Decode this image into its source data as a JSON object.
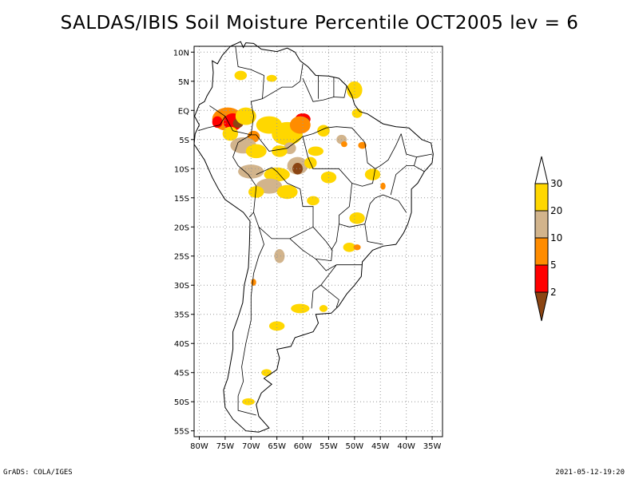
{
  "title": "SALDAS/IBIS Soil Moisture Percentile OCT2005 lev = 6",
  "footer": {
    "left": "GrADS: COLA/IGES",
    "right": "2021-05-12-19:20"
  },
  "map": {
    "lat_labels": [
      "10N",
      "5N",
      "EQ",
      "5S",
      "10S",
      "15S",
      "20S",
      "25S",
      "30S",
      "35S",
      "40S",
      "45S",
      "50S",
      "55S"
    ],
    "lat_values": [
      10,
      5,
      0,
      -5,
      -10,
      -15,
      -20,
      -25,
      -30,
      -35,
      -40,
      -45,
      -50,
      -55
    ],
    "lon_labels": [
      "80W",
      "75W",
      "70W",
      "65W",
      "60W",
      "55W",
      "50W",
      "45W",
      "40W",
      "35W"
    ],
    "lon_values": [
      -80,
      -75,
      -70,
      -65,
      -60,
      -55,
      -50,
      -45,
      -40,
      -35
    ],
    "lon_range": [
      -81,
      -33
    ],
    "lat_range": [
      -56,
      11
    ],
    "colors": {
      "coast": "#000000",
      "grid": "#999999",
      "bin_2": "#8b4513",
      "bin_2_5": "#ff0000",
      "bin_5_10": "#ff8c00",
      "bin_10_20": "#d2b48c",
      "bin_20_30": "#ffd700"
    },
    "patches": [
      {
        "lon": -74.5,
        "lat": -1.5,
        "rx": 3.0,
        "ry": 2.0,
        "bin": "bin_5_10"
      },
      {
        "lon": -73.5,
        "lat": -2.0,
        "rx": 1.8,
        "ry": 1.5,
        "bin": "bin_2_5"
      },
      {
        "lon": -72.5,
        "lat": -2.2,
        "rx": 1.0,
        "ry": 0.8,
        "bin": "bin_2"
      },
      {
        "lon": -76.5,
        "lat": -2.0,
        "rx": 1.0,
        "ry": 1.0,
        "bin": "bin_2_5"
      },
      {
        "lon": -71.0,
        "lat": -1.0,
        "rx": 2.0,
        "ry": 1.5,
        "bin": "bin_20_30"
      },
      {
        "lon": -69.5,
        "lat": -4.5,
        "rx": 1.2,
        "ry": 1.0,
        "bin": "bin_5_10"
      },
      {
        "lon": -71.5,
        "lat": -6.0,
        "rx": 2.5,
        "ry": 1.4,
        "bin": "bin_10_20"
      },
      {
        "lon": -69.0,
        "lat": -7.0,
        "rx": 2.0,
        "ry": 1.2,
        "bin": "bin_20_30"
      },
      {
        "lon": -74.0,
        "lat": -4.0,
        "rx": 1.5,
        "ry": 1.2,
        "bin": "bin_20_30"
      },
      {
        "lon": -66.5,
        "lat": -2.5,
        "rx": 2.5,
        "ry": 1.5,
        "bin": "bin_20_30"
      },
      {
        "lon": -63.0,
        "lat": -4.0,
        "rx": 3.0,
        "ry": 2.0,
        "bin": "bin_20_30"
      },
      {
        "lon": -60.0,
        "lat": -1.5,
        "rx": 1.5,
        "ry": 1.0,
        "bin": "bin_2_5"
      },
      {
        "lon": -59.5,
        "lat": -1.8,
        "rx": 0.8,
        "ry": 0.6,
        "bin": "bin_2"
      },
      {
        "lon": -60.5,
        "lat": -2.5,
        "rx": 2.0,
        "ry": 1.5,
        "bin": "bin_5_10"
      },
      {
        "lon": -62.5,
        "lat": -6.5,
        "rx": 1.2,
        "ry": 1.0,
        "bin": "bin_10_20"
      },
      {
        "lon": -64.5,
        "lat": -7.0,
        "rx": 1.5,
        "ry": 1.0,
        "bin": "bin_20_30"
      },
      {
        "lon": -61.0,
        "lat": -9.5,
        "rx": 2.0,
        "ry": 1.5,
        "bin": "bin_10_20"
      },
      {
        "lon": -61.0,
        "lat": -10.0,
        "rx": 1.0,
        "ry": 1.0,
        "bin": "bin_2"
      },
      {
        "lon": -58.5,
        "lat": -9.0,
        "rx": 1.2,
        "ry": 1.0,
        "bin": "bin_20_30"
      },
      {
        "lon": -65.0,
        "lat": -11.0,
        "rx": 2.5,
        "ry": 1.2,
        "bin": "bin_20_30"
      },
      {
        "lon": -70.0,
        "lat": -10.5,
        "rx": 2.5,
        "ry": 1.2,
        "bin": "bin_10_20"
      },
      {
        "lon": -66.5,
        "lat": -13.0,
        "rx": 2.5,
        "ry": 1.3,
        "bin": "bin_10_20"
      },
      {
        "lon": -63.0,
        "lat": -14.0,
        "rx": 2.0,
        "ry": 1.2,
        "bin": "bin_20_30"
      },
      {
        "lon": -69.0,
        "lat": -14.0,
        "rx": 1.5,
        "ry": 1.0,
        "bin": "bin_20_30"
      },
      {
        "lon": -58.0,
        "lat": -15.5,
        "rx": 1.2,
        "ry": 0.8,
        "bin": "bin_20_30"
      },
      {
        "lon": -55.0,
        "lat": -11.5,
        "rx": 1.5,
        "ry": 1.0,
        "bin": "bin_20_30"
      },
      {
        "lon": -52.5,
        "lat": -5.0,
        "rx": 1.0,
        "ry": 0.8,
        "bin": "bin_10_20"
      },
      {
        "lon": -52.0,
        "lat": -5.8,
        "rx": 0.6,
        "ry": 0.5,
        "bin": "bin_5_10"
      },
      {
        "lon": -48.5,
        "lat": -6.0,
        "rx": 0.8,
        "ry": 0.6,
        "bin": "bin_5_10"
      },
      {
        "lon": -50.0,
        "lat": 3.5,
        "rx": 1.5,
        "ry": 1.5,
        "bin": "bin_20_30"
      },
      {
        "lon": -49.5,
        "lat": -0.5,
        "rx": 1.0,
        "ry": 0.8,
        "bin": "bin_20_30"
      },
      {
        "lon": -56.0,
        "lat": -3.5,
        "rx": 1.2,
        "ry": 1.0,
        "bin": "bin_20_30"
      },
      {
        "lon": -46.5,
        "lat": -11.0,
        "rx": 1.5,
        "ry": 1.0,
        "bin": "bin_20_30"
      },
      {
        "lon": -44.5,
        "lat": -13.0,
        "rx": 0.5,
        "ry": 0.6,
        "bin": "bin_5_10"
      },
      {
        "lon": -49.5,
        "lat": -18.5,
        "rx": 1.5,
        "ry": 1.0,
        "bin": "bin_20_30"
      },
      {
        "lon": -51.0,
        "lat": -23.5,
        "rx": 1.2,
        "ry": 0.8,
        "bin": "bin_20_30"
      },
      {
        "lon": -49.5,
        "lat": -23.5,
        "rx": 0.7,
        "ry": 0.5,
        "bin": "bin_5_10"
      },
      {
        "lon": -64.5,
        "lat": -25.0,
        "rx": 1.0,
        "ry": 1.2,
        "bin": "bin_10_20"
      },
      {
        "lon": -69.5,
        "lat": -29.5,
        "rx": 0.5,
        "ry": 0.6,
        "bin": "bin_5_10"
      },
      {
        "lon": -60.5,
        "lat": -34.0,
        "rx": 1.8,
        "ry": 0.8,
        "bin": "bin_20_30"
      },
      {
        "lon": -56.0,
        "lat": -34.0,
        "rx": 0.8,
        "ry": 0.6,
        "bin": "bin_20_30"
      },
      {
        "lon": -65.0,
        "lat": -37.0,
        "rx": 1.5,
        "ry": 0.8,
        "bin": "bin_20_30"
      },
      {
        "lon": -67.0,
        "lat": -45.0,
        "rx": 1.0,
        "ry": 0.6,
        "bin": "bin_20_30"
      },
      {
        "lon": -70.5,
        "lat": -50.0,
        "rx": 1.2,
        "ry": 0.6,
        "bin": "bin_20_30"
      },
      {
        "lon": -72.0,
        "lat": 6.0,
        "rx": 1.2,
        "ry": 0.8,
        "bin": "bin_20_30"
      },
      {
        "lon": -66.0,
        "lat": 5.5,
        "rx": 1.0,
        "ry": 0.6,
        "bin": "bin_20_30"
      },
      {
        "lon": -57.5,
        "lat": -7.0,
        "rx": 1.5,
        "ry": 0.8,
        "bin": "bin_20_30"
      }
    ]
  },
  "legend": {
    "labels": [
      "30",
      "20",
      "10",
      "5",
      "2"
    ]
  }
}
